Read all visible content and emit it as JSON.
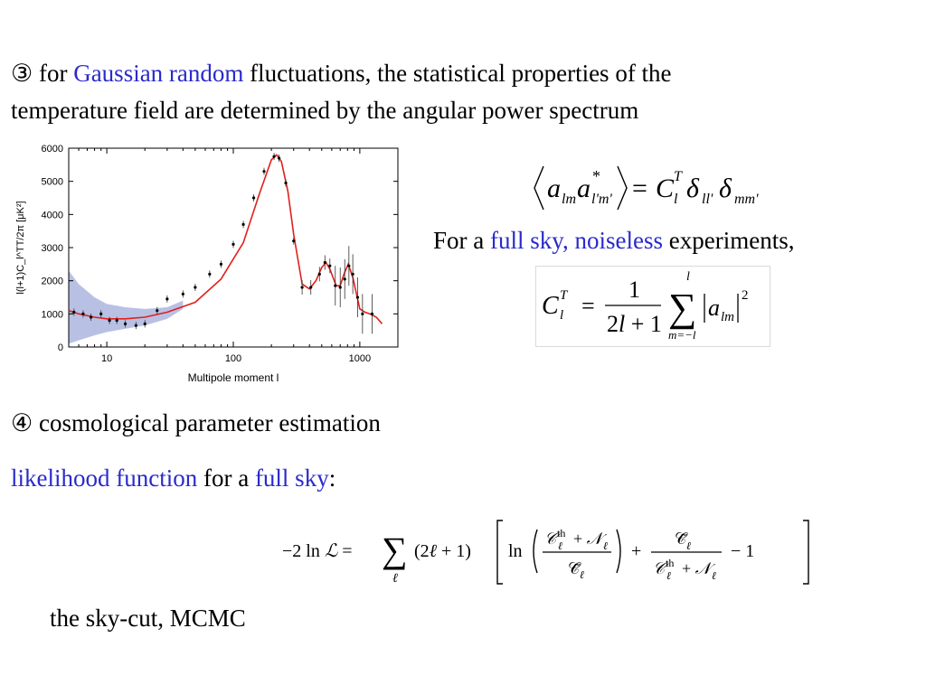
{
  "bullet3": {
    "marker": "③",
    "pre": " for ",
    "highlight": "Gaussian random",
    "post": " fluctuations, the statistical properties of the",
    "line2": "temperature field are determined by the angular power spectrum"
  },
  "full_sky_line": {
    "pre": "For a ",
    "highlight": "full sky, noiseless",
    "post": " experiments,"
  },
  "bullet4": {
    "marker": "④",
    "text": " cosmological parameter estimation"
  },
  "likelihood_line": {
    "highlight1": "likelihood function",
    "mid": " for a ",
    "highlight2": "full sky",
    "post": ":"
  },
  "footer_text": "the sky-cut, MCMC",
  "colors": {
    "highlight": "#2a2acc",
    "model_curve": "#e0201c",
    "band": "#9aa6d8"
  },
  "chart_data": {
    "type": "line",
    "xlabel": "Multipole moment  l",
    "ylabel": "l(l+1)C_l^TT/2π [μK²]",
    "x_scale": "log",
    "xlim": [
      5,
      2000
    ],
    "ylim": [
      0,
      6000
    ],
    "x_ticks": [
      10,
      100,
      1000
    ],
    "y_ticks": [
      0,
      1000,
      2000,
      3000,
      4000,
      5000,
      6000
    ],
    "model": {
      "x": [
        5,
        6,
        8,
        10,
        14,
        20,
        30,
        50,
        80,
        120,
        160,
        200,
        220,
        240,
        270,
        300,
        350,
        400,
        450,
        500,
        540,
        580,
        650,
        700,
        750,
        810,
        880,
        1000,
        1100,
        1200,
        1350,
        1500
      ],
      "y": [
        1100,
        1000,
        900,
        850,
        850,
        900,
        1050,
        1350,
        2050,
        3150,
        4600,
        5650,
        5800,
        5600,
        4700,
        3400,
        1900,
        1750,
        2000,
        2400,
        2550,
        2350,
        1850,
        1850,
        2200,
        2500,
        2100,
        1150,
        1050,
        1000,
        900,
        700
      ]
    },
    "data_points": {
      "x": [
        5.5,
        6.5,
        7.5,
        9,
        10.5,
        12,
        14,
        17,
        20,
        25,
        30,
        40,
        50,
        65,
        80,
        100,
        120,
        145,
        175,
        210,
        230,
        260,
        300,
        350,
        410,
        480,
        530,
        580,
        640,
        700,
        760,
        820,
        880,
        960,
        1050,
        1250
      ],
      "y": [
        1050,
        1000,
        900,
        1000,
        800,
        800,
        700,
        650,
        700,
        1100,
        1450,
        1600,
        1800,
        2200,
        2500,
        3100,
        3700,
        4500,
        5300,
        5750,
        5700,
        4950,
        3200,
        1800,
        1800,
        2200,
        2550,
        2450,
        1850,
        1800,
        2050,
        2450,
        2200,
        1500,
        1000,
        1000
      ]
    },
    "band": {
      "x": [
        5,
        6,
        8,
        10,
        14,
        20,
        30,
        40
      ],
      "upper": [
        2300,
        1900,
        1500,
        1300,
        1200,
        1150,
        1200,
        1400
      ],
      "lower": [
        100,
        200,
        350,
        450,
        550,
        650,
        850,
        1150
      ]
    }
  }
}
